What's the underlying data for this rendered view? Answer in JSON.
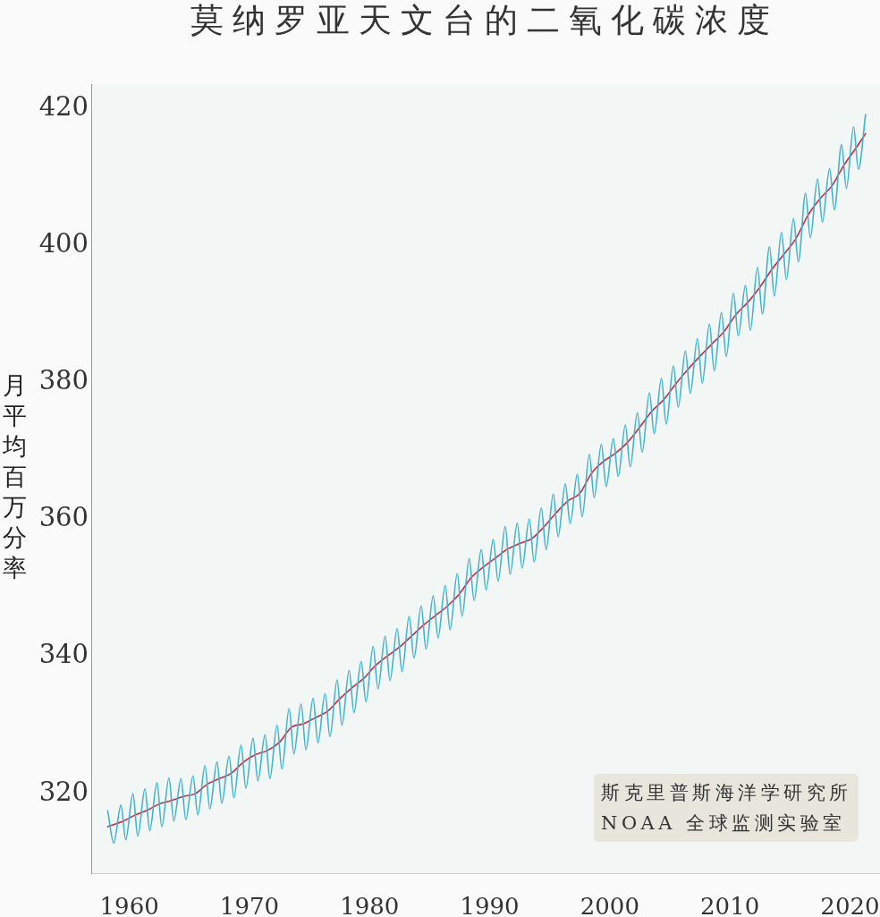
{
  "chart_data": {
    "type": "line",
    "title": "莫纳罗亚天文台的二氧化碳浓度",
    "ylabel": "月平均百万分率",
    "annotations": [
      "斯克里普斯海洋学研究所",
      "NOAA 全球监测实验室"
    ],
    "xlim": [
      1956.9,
      2022.5
    ],
    "xticks": [
      1960,
      1970,
      1980,
      1990,
      2000,
      2010,
      2020
    ],
    "ylim": [
      308.4,
      423.4
    ],
    "yticks": [
      320,
      340,
      360,
      380,
      400,
      420
    ],
    "series": [
      {
        "color": "#41b4cd",
        "x": [
          1958.2,
          1958.7,
          1959.3,
          1959.7,
          1960.3,
          1960.7,
          1961.3,
          1961.7,
          1962.3,
          1962.7,
          1963.3,
          1963.7,
          1964.3,
          1964.7,
          1965.3,
          1965.7,
          1966.3,
          1966.7,
          1967.3,
          1967.7,
          1968.3,
          1968.7,
          1969.3,
          1969.7,
          1970.3,
          1970.7,
          1971.3,
          1971.7,
          1972.3,
          1972.7,
          1973.3,
          1973.7,
          1974.3,
          1974.7,
          1975.3,
          1975.7,
          1976.3,
          1976.7,
          1977.3,
          1977.7,
          1978.3,
          1978.7,
          1979.3,
          1979.7,
          1980.3,
          1980.7,
          1981.3,
          1981.7,
          1982.3,
          1982.7,
          1983.3,
          1983.7,
          1984.3,
          1984.7,
          1985.3,
          1985.7,
          1986.3,
          1986.7,
          1987.3,
          1987.7,
          1988.3,
          1988.7,
          1989.3,
          1989.7,
          1990.3,
          1990.7,
          1991.3,
          1991.7,
          1992.3,
          1992.7,
          1993.3,
          1993.7,
          1994.3,
          1994.7,
          1995.3,
          1995.7,
          1996.3,
          1996.7,
          1997.3,
          1997.7,
          1998.3,
          1998.7,
          1999.3,
          1999.7,
          2000.3,
          2000.7,
          2001.3,
          2001.7,
          2002.3,
          2002.7,
          2003.3,
          2003.7,
          2004.3,
          2004.7,
          2005.3,
          2005.7,
          2006.3,
          2006.7,
          2007.3,
          2007.7,
          2008.3,
          2008.7,
          2009.3,
          2009.7,
          2010.3,
          2010.7,
          2011.3,
          2011.7,
          2012.3,
          2012.7,
          2013.3,
          2013.7,
          2014.3,
          2014.7,
          2015.3,
          2015.7,
          2016.3,
          2016.7,
          2017.3,
          2017.7,
          2018.3,
          2018.7,
          2019.3,
          2019.7,
          2020.3,
          2020.7,
          2021.3
        ],
        "values": [
          317.5,
          312.8,
          318.3,
          313.3,
          320.0,
          313.8,
          320.7,
          314.6,
          321.6,
          315.2,
          322.3,
          316.0,
          322.2,
          316.2,
          322.6,
          316.9,
          324.1,
          317.8,
          324.6,
          318.6,
          325.5,
          319.4,
          327.1,
          320.8,
          328.1,
          321.9,
          328.6,
          322.2,
          330.0,
          323.6,
          332.4,
          325.8,
          333.1,
          326.4,
          333.9,
          327.4,
          334.6,
          328.3,
          336.6,
          330.0,
          338.0,
          331.8,
          339.3,
          333.4,
          341.5,
          335.3,
          343.0,
          336.5,
          344.1,
          337.8,
          345.9,
          339.8,
          347.4,
          341.1,
          348.9,
          342.7,
          350.4,
          343.9,
          352.1,
          345.9,
          354.3,
          348.2,
          355.6,
          349.7,
          357.1,
          351.0,
          359.0,
          352.0,
          359.5,
          352.9,
          360.1,
          353.8,
          361.7,
          355.6,
          363.7,
          357.5,
          365.2,
          359.4,
          366.6,
          360.4,
          369.5,
          363.2,
          371.0,
          364.8,
          371.8,
          366.3,
          373.8,
          367.7,
          375.6,
          369.8,
          378.5,
          372.5,
          380.6,
          373.9,
          382.4,
          376.4,
          384.6,
          378.4,
          386.4,
          379.9,
          388.5,
          381.7,
          390.2,
          383.8,
          393.0,
          386.8,
          394.2,
          387.6,
          396.8,
          390.0,
          399.8,
          392.6,
          401.9,
          395.0,
          403.9,
          397.6,
          407.6,
          401.1,
          409.7,
          403.4,
          411.2,
          405.2,
          414.7,
          408.3,
          417.3,
          411.1,
          419.1
        ]
      },
      {
        "color": "#cc2a3e",
        "x": [
          1958.2,
          1959.5,
          1960.5,
          1961.5,
          1962.5,
          1963.5,
          1964.5,
          1965.5,
          1966.5,
          1967.5,
          1968.5,
          1969.5,
          1970.5,
          1971.5,
          1972.5,
          1973.5,
          1974.5,
          1975.5,
          1976.5,
          1977.5,
          1978.5,
          1979.5,
          1980.5,
          1981.5,
          1982.5,
          1983.5,
          1984.5,
          1985.5,
          1986.5,
          1987.5,
          1988.5,
          1989.5,
          1990.5,
          1991.5,
          1992.5,
          1993.5,
          1994.5,
          1995.5,
          1996.5,
          1997.5,
          1998.5,
          1999.5,
          2000.5,
          2001.5,
          2002.5,
          2003.5,
          2004.5,
          2005.5,
          2006.5,
          2007.5,
          2008.5,
          2009.5,
          2010.5,
          2011.5,
          2012.5,
          2013.5,
          2014.5,
          2015.5,
          2016.5,
          2017.5,
          2018.5,
          2019.5,
          2020.5,
          2021.3
        ],
        "values": [
          315.2,
          316.0,
          316.9,
          317.6,
          318.5,
          319.0,
          319.6,
          320.0,
          321.4,
          322.2,
          323.0,
          324.6,
          325.7,
          326.3,
          327.5,
          329.7,
          330.2,
          331.1,
          332.0,
          333.8,
          335.4,
          336.8,
          338.7,
          340.1,
          341.4,
          343.0,
          344.6,
          346.0,
          347.4,
          349.2,
          351.6,
          353.1,
          354.4,
          355.7,
          356.5,
          357.2,
          358.9,
          360.9,
          362.7,
          363.8,
          366.8,
          368.5,
          369.7,
          371.3,
          373.5,
          375.8,
          377.5,
          379.8,
          381.9,
          383.8,
          385.6,
          387.4,
          389.9,
          391.7,
          393.9,
          396.5,
          398.7,
          401.0,
          404.4,
          406.8,
          408.7,
          411.7,
          414.2,
          416.3
        ]
      }
    ]
  }
}
